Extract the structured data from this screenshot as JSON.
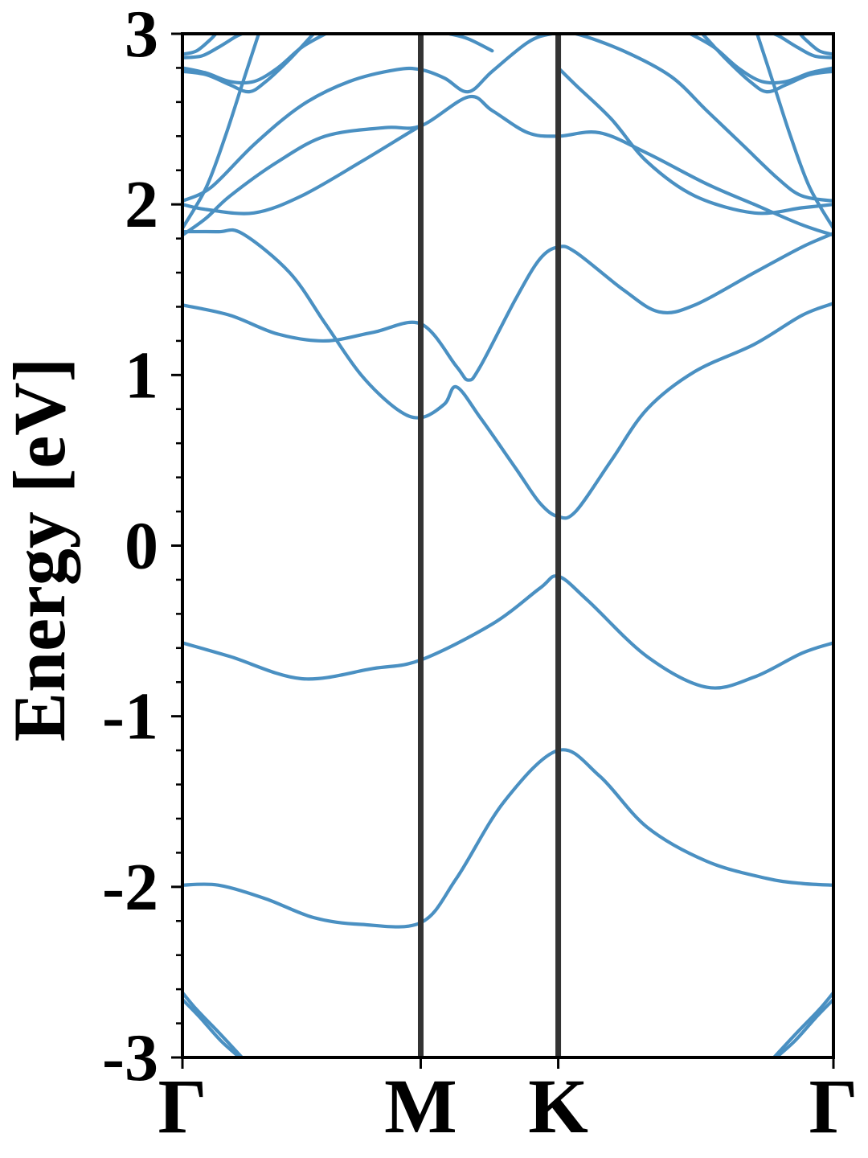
{
  "chart_data": {
    "type": "line",
    "title": "",
    "xlabel": "",
    "ylabel": "Energy [eV]",
    "ylim": [
      -3,
      3
    ],
    "yticks": [
      "3",
      "2",
      "1",
      "0",
      "-1",
      "-2",
      "-3"
    ],
    "ytick_values": [
      3,
      2,
      1,
      0,
      -1,
      -2,
      -3
    ],
    "kpath": [
      {
        "label": "Γ",
        "k": 0
      },
      {
        "label": "M",
        "k": 1
      },
      {
        "label": "K",
        "k": 1.577
      },
      {
        "label": "Γ",
        "k": 2.732
      }
    ],
    "band_color": "#4a90c2",
    "vline_color": "#333333",
    "grid": false,
    "series": [
      {
        "values": [
          [
            0,
            -2.62
          ],
          [
            0.06,
            -2.72
          ],
          [
            0.15,
            -2.85
          ],
          [
            0.25,
            -3.0
          ]
        ]
      },
      {
        "values": [
          [
            0,
            -2.66
          ],
          [
            0.07,
            -2.76
          ],
          [
            0.16,
            -2.9
          ],
          [
            0.24,
            -3.0
          ]
        ]
      },
      {
        "values": [
          [
            2.732,
            -2.62
          ],
          [
            2.672,
            -2.72
          ],
          [
            2.582,
            -2.85
          ],
          [
            2.482,
            -3.0
          ]
        ]
      },
      {
        "values": [
          [
            2.732,
            -2.66
          ],
          [
            2.662,
            -2.76
          ],
          [
            2.572,
            -2.9
          ],
          [
            2.492,
            -3.0
          ]
        ]
      },
      {
        "values": [
          [
            0,
            -1.99
          ],
          [
            0.15,
            -1.99
          ],
          [
            0.35,
            -2.07
          ],
          [
            0.55,
            -2.18
          ],
          [
            0.75,
            -2.22
          ],
          [
            1.0,
            -2.21
          ],
          [
            1.15,
            -1.95
          ],
          [
            1.35,
            -1.5
          ],
          [
            1.577,
            -1.2
          ],
          [
            1.75,
            -1.35
          ],
          [
            1.95,
            -1.65
          ],
          [
            2.2,
            -1.85
          ],
          [
            2.45,
            -1.95
          ],
          [
            2.6,
            -1.98
          ],
          [
            2.732,
            -1.99
          ]
        ]
      },
      {
        "values": [
          [
            0,
            -0.57
          ],
          [
            0.2,
            -0.65
          ],
          [
            0.5,
            -0.78
          ],
          [
            0.8,
            -0.72
          ],
          [
            1.0,
            -0.67
          ],
          [
            1.3,
            -0.46
          ],
          [
            1.5,
            -0.25
          ],
          [
            1.577,
            -0.18
          ],
          [
            1.7,
            -0.32
          ],
          [
            1.95,
            -0.65
          ],
          [
            2.2,
            -0.83
          ],
          [
            2.4,
            -0.77
          ],
          [
            2.6,
            -0.63
          ],
          [
            2.732,
            -0.57
          ]
        ]
      },
      {
        "values": [
          [
            0,
            1.41
          ],
          [
            0.2,
            1.35
          ],
          [
            0.4,
            1.24
          ],
          [
            0.6,
            1.2
          ],
          [
            0.8,
            1.25
          ],
          [
            1.0,
            1.3
          ],
          [
            1.15,
            1.05
          ],
          [
            1.2,
            0.97
          ],
          [
            1.25,
            1.05
          ],
          [
            1.4,
            1.45
          ],
          [
            1.5,
            1.68
          ],
          [
            1.577,
            1.75
          ],
          [
            1.65,
            1.72
          ],
          [
            1.85,
            1.5
          ],
          [
            2.0,
            1.37
          ],
          [
            2.15,
            1.41
          ],
          [
            2.4,
            1.6
          ],
          [
            2.6,
            1.75
          ],
          [
            2.732,
            1.83
          ]
        ]
      },
      {
        "values": [
          [
            0,
            1.84
          ],
          [
            0.15,
            1.84
          ],
          [
            0.25,
            1.83
          ],
          [
            0.45,
            1.6
          ],
          [
            0.6,
            1.3
          ],
          [
            0.75,
            1.0
          ],
          [
            0.9,
            0.8
          ],
          [
            1.0,
            0.75
          ],
          [
            1.1,
            0.83
          ],
          [
            1.15,
            0.93
          ],
          [
            1.25,
            0.75
          ],
          [
            1.4,
            0.45
          ],
          [
            1.5,
            0.25
          ],
          [
            1.577,
            0.17
          ],
          [
            1.65,
            0.2
          ],
          [
            1.8,
            0.5
          ],
          [
            1.95,
            0.8
          ],
          [
            2.15,
            1.02
          ],
          [
            2.4,
            1.18
          ],
          [
            2.6,
            1.35
          ],
          [
            2.732,
            1.42
          ]
        ]
      },
      {
        "values": [
          [
            0,
            1.82
          ],
          [
            0.1,
            1.92
          ],
          [
            0.2,
            2.05
          ],
          [
            0.4,
            2.25
          ],
          [
            0.6,
            2.4
          ],
          [
            0.85,
            2.45
          ],
          [
            1.0,
            2.46
          ],
          [
            1.2,
            2.63
          ],
          [
            1.3,
            2.55
          ],
          [
            1.45,
            2.42
          ],
          [
            1.577,
            2.4
          ],
          [
            1.75,
            2.42
          ],
          [
            1.95,
            2.3
          ],
          [
            2.2,
            2.12
          ],
          [
            2.4,
            2.0
          ],
          [
            2.6,
            1.88
          ],
          [
            2.732,
            1.82
          ]
        ]
      },
      {
        "values": [
          [
            0,
            2.0
          ],
          [
            0.1,
            1.97
          ],
          [
            0.3,
            1.95
          ],
          [
            0.5,
            2.05
          ],
          [
            0.75,
            2.25
          ],
          [
            0.95,
            2.42
          ],
          [
            1.0,
            2.46
          ]
        ]
      },
      {
        "values": [
          [
            2.732,
            2.0
          ],
          [
            2.6,
            1.98
          ],
          [
            2.4,
            1.95
          ],
          [
            2.15,
            2.05
          ],
          [
            1.95,
            2.25
          ],
          [
            1.8,
            2.5
          ],
          [
            1.65,
            2.7
          ],
          [
            1.577,
            2.8
          ]
        ]
      },
      {
        "values": [
          [
            0,
            2.02
          ],
          [
            0.12,
            2.1
          ],
          [
            0.3,
            2.35
          ],
          [
            0.5,
            2.58
          ],
          [
            0.7,
            2.72
          ],
          [
            0.9,
            2.79
          ],
          [
            1.0,
            2.79
          ],
          [
            1.1,
            2.74
          ],
          [
            1.2,
            2.66
          ],
          [
            1.3,
            2.78
          ],
          [
            1.45,
            2.95
          ],
          [
            1.55,
            3.0
          ],
          [
            1.65,
            3.0
          ],
          [
            1.85,
            2.9
          ],
          [
            2.05,
            2.75
          ],
          [
            2.2,
            2.55
          ],
          [
            2.35,
            2.35
          ],
          [
            2.5,
            2.15
          ],
          [
            2.6,
            2.05
          ],
          [
            2.732,
            2.02
          ]
        ]
      },
      {
        "values": [
          [
            0,
            1.86
          ],
          [
            0.1,
            2.1
          ],
          [
            0.18,
            2.4
          ],
          [
            0.25,
            2.7
          ],
          [
            0.32,
            3.0
          ]
        ]
      },
      {
        "values": [
          [
            2.732,
            1.86
          ],
          [
            2.632,
            2.1
          ],
          [
            2.552,
            2.4
          ],
          [
            2.482,
            2.7
          ],
          [
            2.412,
            3.0
          ]
        ]
      },
      {
        "values": [
          [
            0,
            2.8
          ],
          [
            0.1,
            2.77
          ],
          [
            0.2,
            2.72
          ],
          [
            0.3,
            2.72
          ],
          [
            0.4,
            2.8
          ],
          [
            0.5,
            2.92
          ],
          [
            0.6,
            3.0
          ]
        ]
      },
      {
        "values": [
          [
            2.732,
            2.8
          ],
          [
            2.632,
            2.77
          ],
          [
            2.532,
            2.72
          ],
          [
            2.432,
            2.72
          ],
          [
            2.332,
            2.8
          ],
          [
            2.232,
            2.92
          ],
          [
            2.132,
            3.0
          ]
        ]
      },
      {
        "values": [
          [
            0,
            2.78
          ],
          [
            0.1,
            2.76
          ],
          [
            0.2,
            2.7
          ],
          [
            0.28,
            2.66
          ],
          [
            0.35,
            2.72
          ],
          [
            0.45,
            2.85
          ],
          [
            0.55,
            3.0
          ]
        ]
      },
      {
        "values": [
          [
            2.732,
            2.78
          ],
          [
            2.632,
            2.76
          ],
          [
            2.532,
            2.7
          ],
          [
            2.452,
            2.66
          ],
          [
            2.382,
            2.72
          ],
          [
            2.282,
            2.85
          ],
          [
            2.182,
            3.0
          ]
        ]
      },
      {
        "values": [
          [
            0,
            2.86
          ],
          [
            0.08,
            2.87
          ],
          [
            0.15,
            2.92
          ],
          [
            0.22,
            2.98
          ],
          [
            0.25,
            3.0
          ]
        ]
      },
      {
        "values": [
          [
            2.732,
            2.86
          ],
          [
            2.652,
            2.87
          ],
          [
            2.582,
            2.92
          ],
          [
            2.512,
            2.98
          ],
          [
            2.482,
            3.0
          ]
        ]
      },
      {
        "values": [
          [
            0,
            2.88
          ],
          [
            0.06,
            2.9
          ],
          [
            0.12,
            2.97
          ],
          [
            0.14,
            3.0
          ]
        ]
      },
      {
        "values": [
          [
            2.732,
            2.88
          ],
          [
            2.672,
            2.9
          ],
          [
            2.612,
            2.97
          ],
          [
            2.592,
            3.0
          ]
        ]
      },
      {
        "values": [
          [
            1.12,
            3.0
          ],
          [
            1.2,
            2.97
          ],
          [
            1.3,
            2.9
          ]
        ]
      }
    ]
  }
}
